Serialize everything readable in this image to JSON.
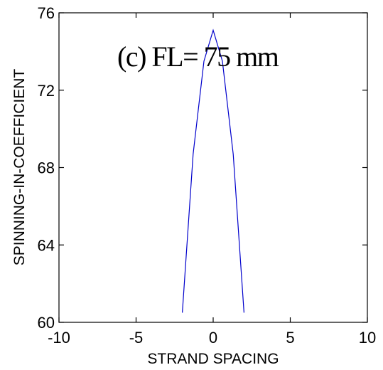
{
  "chart_data": {
    "type": "line",
    "annotation": "(c) FL= 75 mm",
    "xlabel": "STRAND SPACING",
    "ylabel": "SPINNING-IN-COEFFICIENT",
    "xlim": [
      -10,
      10
    ],
    "ylim": [
      60,
      76
    ],
    "xticks": [
      -10,
      -5,
      0,
      5,
      10
    ],
    "yticks": [
      60,
      64,
      68,
      72,
      76
    ],
    "xtick_labels": [
      "-10",
      "-5",
      "0",
      "5",
      "10"
    ],
    "ytick_labels": [
      "60",
      "64",
      "68",
      "72",
      "76"
    ],
    "grid": false,
    "series": [
      {
        "color": "#0000cc",
        "x": [
          -2.0,
          -1.3,
          -0.6,
          0.0,
          0.6,
          1.3,
          2.0
        ],
        "y": [
          60.5,
          68.7,
          73.5,
          75.1,
          73.5,
          68.7,
          60.5
        ]
      }
    ]
  }
}
